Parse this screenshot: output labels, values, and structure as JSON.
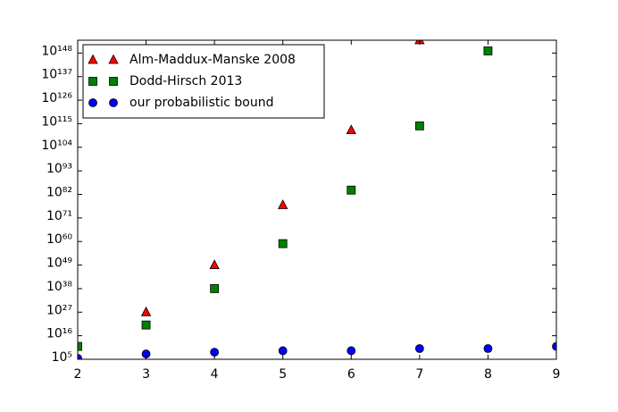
{
  "chart_data": {
    "type": "scatter",
    "log_y": true,
    "xlim": [
      2,
      9
    ],
    "xticks": [
      2,
      3,
      4,
      5,
      6,
      7,
      8,
      9
    ],
    "ylim": [
      100000.0,
      1e+154
    ],
    "yticks": [
      {
        "value": 100000.0,
        "label": "10⁵"
      },
      {
        "value": 1e+16,
        "label": "10¹⁶"
      },
      {
        "value": 1e+27,
        "label": "10²⁷"
      },
      {
        "value": 1e+38,
        "label": "10³⁸"
      },
      {
        "value": 1e+49,
        "label": "10⁴⁹"
      },
      {
        "value": 1e+60,
        "label": "10⁶⁰"
      },
      {
        "value": 1e+71,
        "label": "10⁷¹"
      },
      {
        "value": 1e+82,
        "label": "10⁸²"
      },
      {
        "value": 1e+93,
        "label": "10⁹³"
      },
      {
        "value": 1e+104,
        "label": "10¹⁰⁴"
      },
      {
        "value": 1e+115,
        "label": "10¹¹⁵"
      },
      {
        "value": 1e+126,
        "label": "10¹²⁶"
      },
      {
        "value": 1e+137,
        "label": "10¹³⁷"
      },
      {
        "value": 1e+148,
        "label": "10¹⁴⁸"
      }
    ],
    "legend": "upper left",
    "series": [
      {
        "name": "Alm-Maddux-Manske 2008",
        "color": "#ff0000",
        "marker": "triangle",
        "x": [
          3,
          4,
          5,
          6,
          7
        ],
        "values": [
          1e+27,
          1e+49,
          1e+77,
          1e+112,
          1e+154
        ]
      },
      {
        "name": "Dodd-Hirsch 2013",
        "color": "#008000",
        "marker": "square",
        "x": [
          2,
          3,
          4,
          5,
          6,
          7,
          8
        ],
        "values": [
          100000000000.0,
          1e+21,
          1e+38,
          1e+59,
          1e+84,
          1e+114,
          1e+149
        ]
      },
      {
        "name": "our probabilistic bound",
        "color": "#0000ff",
        "marker": "circle",
        "x": [
          2,
          3,
          4,
          5,
          6,
          7,
          8,
          9
        ],
        "values": [
          300000.0,
          30000000.0,
          200000000.0,
          1000000000.0,
          1000000000.0,
          10000000000.0,
          10000000000.0,
          100000000000.0
        ]
      }
    ]
  }
}
